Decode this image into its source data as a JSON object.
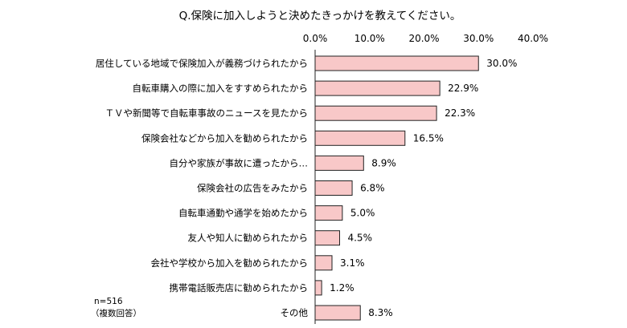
{
  "chart_data": {
    "type": "bar",
    "orientation": "horizontal",
    "title": "Q.保険に加入しようと決めたきっかけを教えてください。",
    "categories": [
      "居住している地域で保険加入が義務づけられたから",
      "自転車購入の際に加入をすすめられたから",
      "ＴＶや新聞等で自転車事故のニュースを見たから",
      "保険会社などから加入を勧められたから",
      "自分や家族が事故に遭ったから…",
      "保険会社の広告をみたから",
      "自転車通勤や通学を始めたから",
      "友人や知人に勧められたから",
      "会社や学校から加入を勧められたから",
      "携帯電話販売店に勧められたから",
      "その他"
    ],
    "values": [
      30.0,
      22.9,
      22.3,
      16.5,
      8.9,
      6.8,
      5.0,
      4.5,
      3.1,
      1.2,
      8.3
    ],
    "value_labels": [
      "30.0%",
      "22.9%",
      "22.3%",
      "16.5%",
      "8.9%",
      "6.8%",
      "5.0%",
      "4.5%",
      "3.1%",
      "1.2%",
      "8.3%"
    ],
    "xlim": [
      0,
      40
    ],
    "xticks": [
      0,
      10,
      20,
      30,
      40
    ],
    "xtick_labels": [
      "0.0%",
      "10.0%",
      "20.0%",
      "30.0%",
      "40.0%"
    ],
    "axis_position": "top",
    "grid": false,
    "bar_color": "#f8c8c8",
    "note_lines": [
      "n=516",
      "（複数回答）"
    ]
  }
}
